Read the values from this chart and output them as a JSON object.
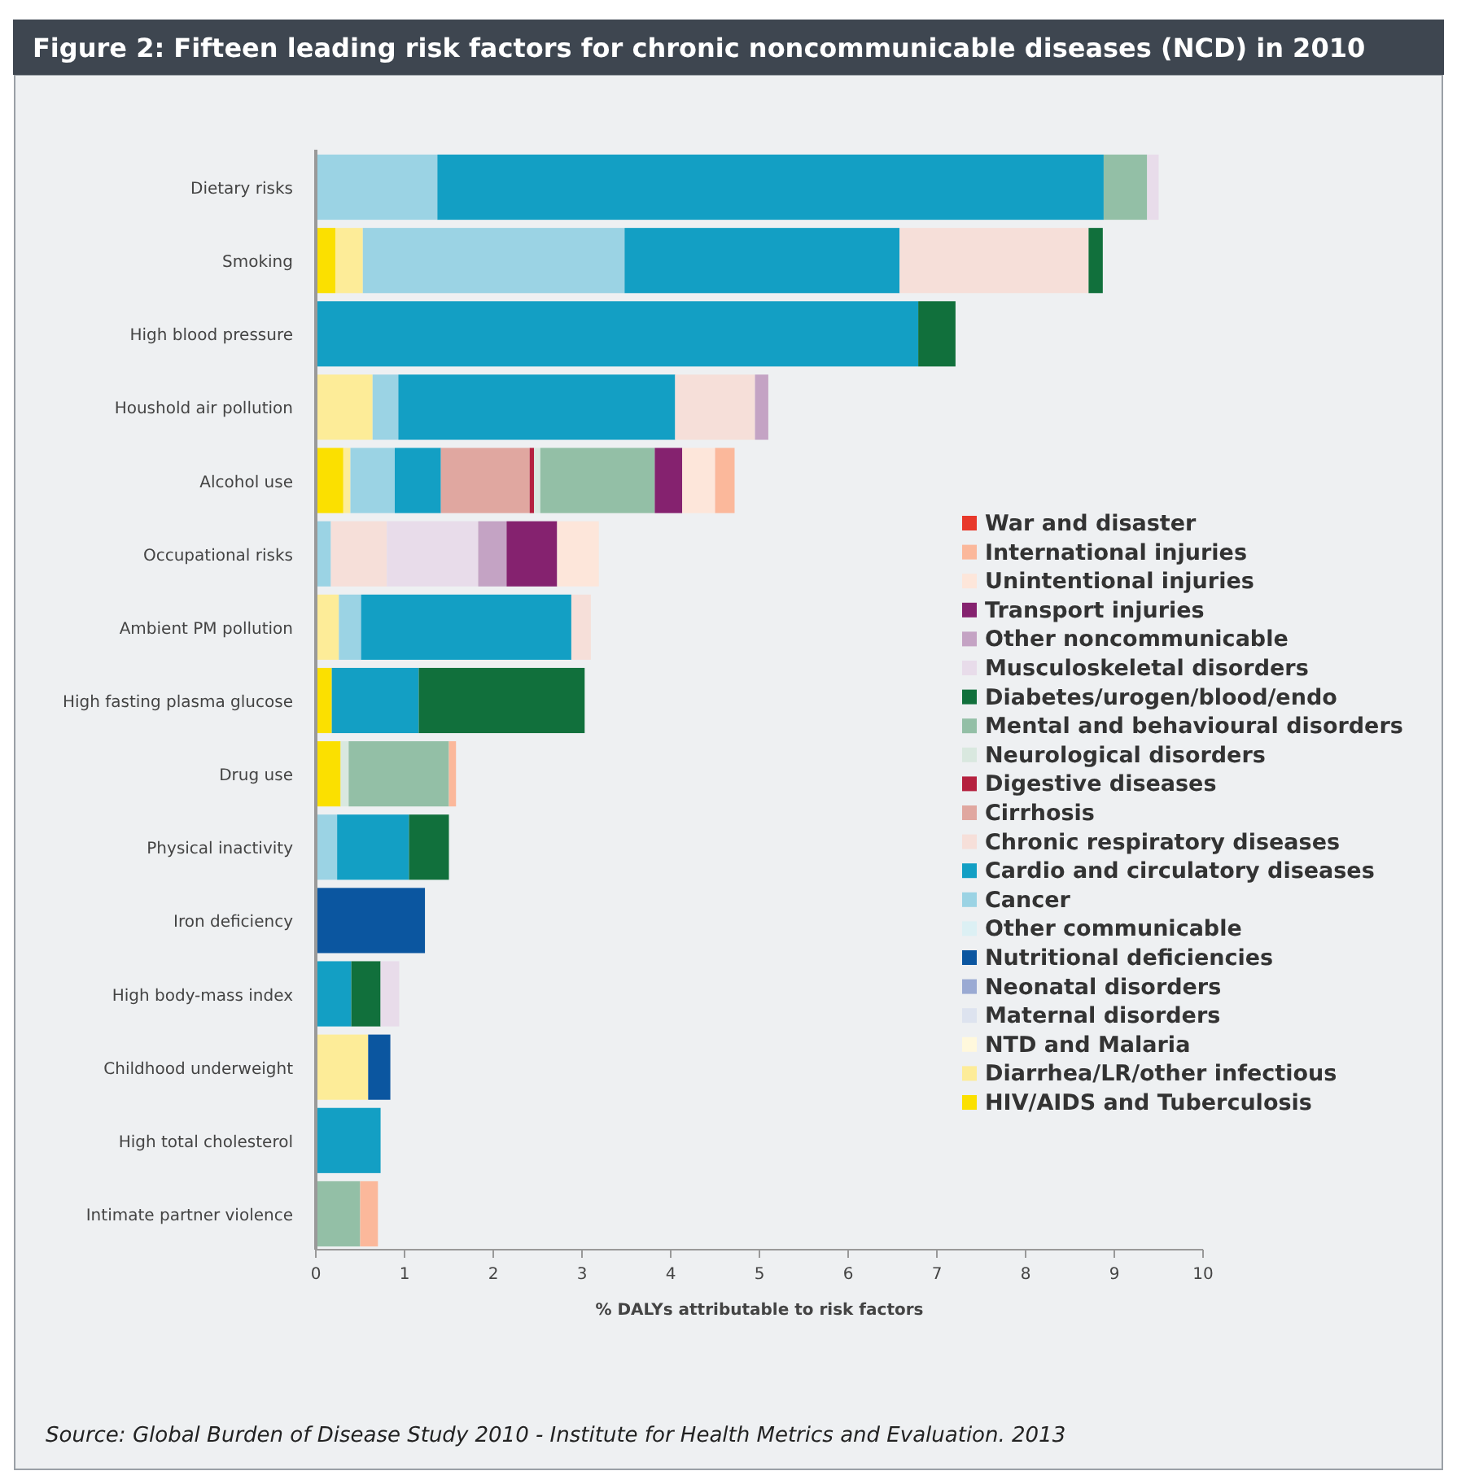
{
  "chart_data": {
    "type": "bar",
    "orientation": "horizontal",
    "stacked": true,
    "title": "Figure 2: Fifteen leading risk factors for chronic noncommunicable diseases (NCD) in 2010",
    "xlabel": "% DALYs attributable to risk factors",
    "annotations": [
      "Source:  Global Burden of Disease Study 2010 - Institute for Health Metrics and Evaluation. 2013"
    ],
    "categories": [
      "Dietary risks",
      "Smoking",
      "High blood pressure",
      "Houshold air pollution",
      "Alcohol use",
      "Occupational risks",
      "Ambient PM pollution",
      "High fasting plasma glucose",
      "Drug use",
      "Physical inactivity",
      "Iron deficiency",
      "High body-mass index",
      "Childhood underweight",
      "High total cholesterol",
      "Intimate partner violence"
    ],
    "xlim": [
      0,
      10
    ],
    "xticks": [
      0,
      1,
      2,
      3,
      4,
      5,
      6,
      7,
      8,
      9,
      10
    ],
    "grid": false,
    "legend": "right",
    "series": [
      {
        "name": "HIV/AIDS and Tuberculosis",
        "color": "#fbe000",
        "values": [
          null,
          0.22,
          null,
          null,
          0.31,
          null,
          null,
          0.18,
          0.28,
          null,
          null,
          null,
          null,
          null,
          null
        ]
      },
      {
        "name": "Diarrhea/LR/other infectious",
        "color": "#fdec98",
        "values": [
          null,
          0.31,
          null,
          0.64,
          0.08,
          null,
          0.26,
          null,
          null,
          null,
          null,
          null,
          0.59,
          null,
          null
        ]
      },
      {
        "name": "NTD and Malaria",
        "color": "#fff8dc",
        "values": [
          null,
          null,
          null,
          null,
          null,
          null,
          null,
          null,
          null,
          null,
          null,
          null,
          null,
          null,
          null
        ]
      },
      {
        "name": "Maternal disorders",
        "color": "#dde3ef",
        "values": [
          null,
          null,
          null,
          null,
          null,
          null,
          null,
          null,
          null,
          null,
          null,
          null,
          null,
          null,
          null
        ]
      },
      {
        "name": "Neonatal disorders",
        "color": "#9aaad3",
        "values": [
          null,
          null,
          null,
          null,
          null,
          null,
          null,
          null,
          null,
          null,
          null,
          null,
          null,
          null,
          null
        ]
      },
      {
        "name": "Nutritional deficiencies",
        "color": "#0b56a0",
        "values": [
          null,
          null,
          null,
          null,
          null,
          null,
          null,
          null,
          null,
          null,
          1.23,
          null,
          0.25,
          null,
          null
        ]
      },
      {
        "name": "Other communicable",
        "color": "#dcf0f4",
        "values": [
          null,
          null,
          null,
          null,
          null,
          null,
          null,
          null,
          null,
          null,
          null,
          null,
          null,
          null,
          null
        ]
      },
      {
        "name": "Cancer",
        "color": "#9bd3e4",
        "values": [
          1.37,
          2.95,
          null,
          0.29,
          0.5,
          0.17,
          0.25,
          null,
          null,
          0.24,
          null,
          null,
          null,
          null,
          null
        ]
      },
      {
        "name": "Cardio and circulatory diseases",
        "color": "#139fc4",
        "values": [
          7.51,
          3.1,
          6.79,
          3.12,
          0.52,
          null,
          2.37,
          0.98,
          null,
          0.81,
          null,
          0.4,
          null,
          0.73,
          null
        ]
      },
      {
        "name": "Chronic respiratory diseases",
        "color": "#f6dfd9",
        "values": [
          null,
          2.13,
          null,
          0.9,
          null,
          0.63,
          0.22,
          null,
          null,
          null,
          null,
          null,
          null,
          null,
          null
        ]
      },
      {
        "name": "Cirrhosis",
        "color": "#e0a7a0",
        "values": [
          null,
          null,
          null,
          null,
          1.0,
          null,
          null,
          null,
          null,
          null,
          null,
          null,
          null,
          null,
          null
        ]
      },
      {
        "name": "Digestive diseases",
        "color": "#b5213f",
        "values": [
          null,
          null,
          null,
          null,
          0.05,
          null,
          null,
          null,
          null,
          null,
          null,
          null,
          null,
          null,
          null
        ]
      },
      {
        "name": "Neurological disorders",
        "color": "#d9e8df",
        "values": [
          null,
          null,
          null,
          null,
          0.07,
          null,
          null,
          null,
          0.09,
          null,
          null,
          null,
          null,
          null,
          null
        ]
      },
      {
        "name": "Mental and behavioural disorders",
        "color": "#93bfa6",
        "values": [
          0.49,
          null,
          null,
          null,
          1.29,
          null,
          null,
          null,
          1.13,
          null,
          null,
          null,
          null,
          null,
          0.5
        ]
      },
      {
        "name": "Diabetes/urogen/blood/endo",
        "color": "#11703c",
        "values": [
          null,
          0.16,
          0.42,
          null,
          null,
          null,
          null,
          1.87,
          null,
          0.45,
          null,
          0.33,
          null,
          null,
          null
        ]
      },
      {
        "name": "Musculoskeletal disorders",
        "color": "#e8dcea",
        "values": [
          0.13,
          null,
          null,
          null,
          null,
          1.03,
          null,
          null,
          null,
          null,
          null,
          0.21,
          null,
          null,
          null
        ]
      },
      {
        "name": "Other noncommunicable",
        "color": "#c4a3c4",
        "values": [
          null,
          null,
          null,
          0.15,
          null,
          0.32,
          null,
          null,
          null,
          null,
          null,
          null,
          null,
          null,
          null
        ]
      },
      {
        "name": "Transport injuries",
        "color": "#85226f",
        "values": [
          null,
          null,
          null,
          null,
          0.31,
          0.57,
          null,
          null,
          null,
          null,
          null,
          null,
          null,
          null,
          null
        ]
      },
      {
        "name": "Unintentional injuries",
        "color": "#fde6da",
        "values": [
          null,
          null,
          null,
          null,
          0.37,
          0.47,
          null,
          null,
          null,
          null,
          null,
          null,
          null,
          null,
          null
        ]
      },
      {
        "name": "International injuries",
        "color": "#fbb89b",
        "values": [
          null,
          null,
          null,
          null,
          0.22,
          null,
          null,
          null,
          0.08,
          null,
          null,
          null,
          null,
          null,
          0.2
        ]
      },
      {
        "name": "War and disaster",
        "color": "#e8392b",
        "values": [
          null,
          null,
          null,
          null,
          null,
          null,
          null,
          null,
          null,
          null,
          null,
          null,
          null,
          null,
          null
        ]
      }
    ]
  }
}
